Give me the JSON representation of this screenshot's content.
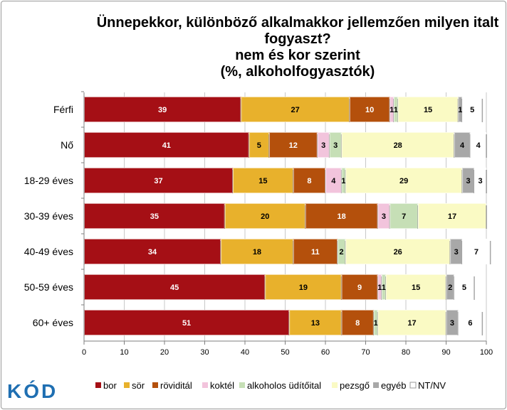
{
  "chart_data": {
    "type": "bar",
    "orientation": "horizontal",
    "stacked": true,
    "title_lines": [
      "Ünnepekkor, különböző alkalmakkor jellemzően milyen italt",
      "fogyaszt?",
      "nem és kor szerint",
      "(%, alkoholfogyasztók)"
    ],
    "categories": [
      "Férfi",
      "Nő",
      "18-29 éves",
      "30-39 éves",
      "40-49 éves",
      "50-59 éves",
      "60+ éves"
    ],
    "xlim": [
      0,
      100
    ],
    "xticks": [
      "0",
      "10",
      "20",
      "30",
      "40",
      "50",
      "60",
      "70",
      "80",
      "90",
      "100"
    ],
    "grid": true,
    "legend_position": "bottom",
    "series": [
      {
        "name": "bor",
        "color": "#a50f15",
        "text_color": "#ffffff",
        "values": [
          39,
          41,
          37,
          35,
          34,
          45,
          51
        ]
      },
      {
        "name": "sör",
        "color": "#e8b12c",
        "text_color": "#000000",
        "values": [
          27,
          5,
          15,
          20,
          18,
          19,
          13
        ]
      },
      {
        "name": "röviditál",
        "color": "#b4500c",
        "text_color": "#ffffff",
        "values": [
          10,
          12,
          8,
          18,
          11,
          9,
          8
        ]
      },
      {
        "name": "koktél",
        "color": "#f2c4dc",
        "text_color": "#000000",
        "values": [
          1,
          3,
          4,
          3,
          0,
          1,
          0
        ]
      },
      {
        "name": "alkoholos üdítőital",
        "color": "#c6dfb6",
        "text_color": "#000000",
        "values": [
          1,
          3,
          1,
          7,
          2,
          1,
          1
        ]
      },
      {
        "name": "pezsgő",
        "color": "#fafac4",
        "text_color": "#000000",
        "values": [
          15,
          28,
          29,
          17,
          26,
          15,
          17
        ]
      },
      {
        "name": "egyéb",
        "color": "#a8a8a8",
        "text_color": "#000000",
        "values": [
          1,
          4,
          3,
          0,
          3,
          2,
          3
        ]
      },
      {
        "name": "NT/NV",
        "color": "#ffffff",
        "text_color": "#000000",
        "values": [
          5,
          4,
          3,
          0,
          7,
          5,
          6
        ]
      }
    ],
    "data_labels": [
      [
        "39",
        "27",
        "10",
        "1",
        "1",
        "15",
        "1",
        "5"
      ],
      [
        "41",
        "5",
        "12",
        "3",
        "3",
        "28",
        "4",
        "4"
      ],
      [
        "37",
        "15",
        "8",
        "4",
        "1",
        "29",
        "3",
        "3"
      ],
      [
        "35",
        "20",
        "18",
        "3",
        "7",
        "17",
        "",
        ""
      ],
      [
        "34",
        "18",
        "11",
        "",
        "2",
        "26",
        "3",
        "7"
      ],
      [
        "45",
        "19",
        "9",
        "1",
        "1",
        "15",
        "2",
        "5"
      ],
      [
        "51",
        "13",
        "8",
        "",
        "1",
        "17",
        "3",
        "6"
      ]
    ]
  },
  "logo": {
    "text": "KÓD"
  }
}
